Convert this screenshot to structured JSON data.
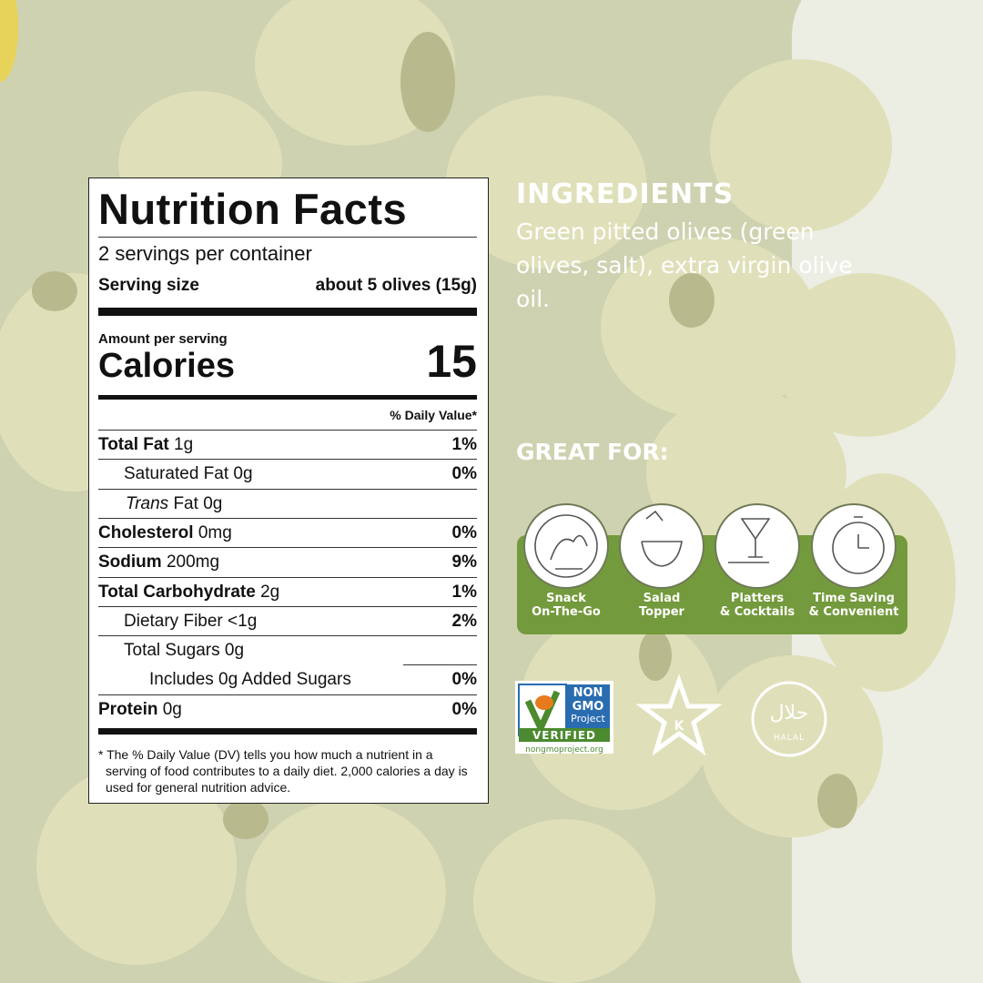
{
  "nutrition": {
    "title": "Nutrition Facts",
    "servings": "2 servings per container",
    "serving_size_label": "Serving size",
    "serving_size": "about 5 olives (15g)",
    "amount_per_serving": "Amount per serving",
    "calories_label": "Calories",
    "calories": 15,
    "dv_header": "% Daily Value*",
    "rows": [
      {
        "label": "Total Fat",
        "amount": "1g",
        "dv": "1%"
      },
      {
        "label": "Saturated Fat",
        "amount": "0g",
        "dv": "0%"
      },
      {
        "prefix": "Trans",
        "label": "Fat",
        "amount": "0g"
      },
      {
        "label": "Cholesterol",
        "amount": "0mg",
        "dv": "0%"
      },
      {
        "label": "Sodium",
        "amount": "200mg",
        "dv": "9%"
      },
      {
        "label": "Total Carbohydrate",
        "amount": "2g",
        "dv": "1%"
      },
      {
        "label": "Dietary Fiber",
        "amount": "<1g",
        "dv": "2%"
      },
      {
        "label": "Total Sugars",
        "amount": "0g"
      },
      {
        "label": "Includes 0g Added Sugars",
        "dv": "0%"
      },
      {
        "label": "Protein",
        "amount": "0g",
        "dv": "0%"
      }
    ],
    "footnote": "* The % Daily Value (DV) tells you how much a nutrient in a serving of food contributes to a daily diet. 2,000 calories a day is used for general nutrition advice."
  },
  "ingredients": {
    "title": "INGREDIENTS",
    "text": "Green pitted olives (green olives, salt), extra virgin olive oil."
  },
  "great_for": {
    "title": "GREAT FOR:",
    "items": [
      [
        "Snack",
        "On-The-Go"
      ],
      [
        "Salad",
        "Topper"
      ],
      [
        "Platters",
        "& Cocktails"
      ],
      [
        "Time Saving",
        "& Convenient"
      ]
    ]
  },
  "certifications": {
    "non_gmo": [
      "NON",
      "GMO",
      "Project",
      "VERIFIED",
      "nongmoproject.org"
    ],
    "kosher": "K",
    "halal": [
      "حلال",
      "HALAL"
    ]
  }
}
